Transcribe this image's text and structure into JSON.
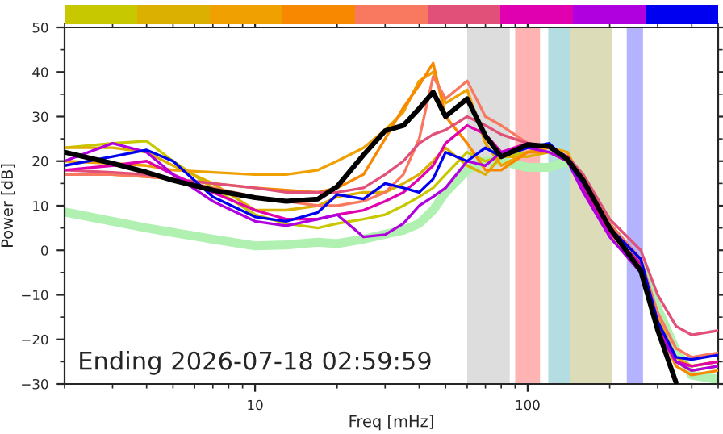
{
  "chart_data": {
    "type": "line",
    "xlabel": "Freq [mHz]",
    "ylabel": "Power [dB]",
    "log": "x",
    "xlim": [
      2,
      500
    ],
    "xticks": [
      10,
      100
    ],
    "ylim": [
      -30,
      50
    ],
    "yticks": [
      -30,
      -20,
      -10,
      0,
      10,
      20,
      30,
      40,
      50
    ],
    "grid": false,
    "legend": false,
    "annotations": [
      "Ending 2026-07-18 02:59:59"
    ],
    "bands": [
      {
        "axis": "x",
        "from": 60,
        "to": 86,
        "color": "#dddddd"
      },
      {
        "axis": "x",
        "from": 90,
        "to": 111,
        "color": "#ffb3b3"
      },
      {
        "axis": "x",
        "from": 119,
        "to": 143,
        "color": "#b3dde0"
      },
      {
        "axis": "x",
        "from": 143,
        "to": 204,
        "color": "#dcdcb8"
      },
      {
        "axis": "x",
        "from": 231,
        "to": 265,
        "color": "#b3b3ff"
      }
    ],
    "x": [
      2,
      3,
      4,
      5,
      7,
      10,
      13,
      17,
      20,
      25,
      30,
      35,
      40,
      45,
      50,
      60,
      70,
      80,
      100,
      120,
      140,
      160,
      200,
      260,
      300,
      350,
      400,
      500
    ],
    "series": [
      {
        "color": "#b0f0b0",
        "values": [
          8.6,
          6.5,
          5,
          4,
          2.5,
          1,
          1.2,
          1.8,
          1.5,
          2.5,
          3.6,
          4.5,
          6,
          9,
          13,
          18,
          20,
          20,
          18.6,
          18.6,
          20,
          15.7,
          5,
          -3.5,
          -13,
          -22.5,
          -28,
          -29
        ]
      },
      {
        "color": "#c8c800",
        "values": [
          23,
          24,
          24.5,
          20,
          14,
          8,
          6,
          5,
          6,
          7,
          8,
          10,
          12,
          14,
          17,
          22,
          20,
          21,
          22,
          23,
          20,
          14,
          5,
          -3,
          -16,
          -25,
          -27,
          -26
        ]
      },
      {
        "color": "#dcb000",
        "values": [
          23,
          23,
          22,
          19,
          15,
          9,
          9,
          10,
          12,
          13,
          13,
          15,
          17,
          20,
          23,
          19,
          17,
          21,
          21,
          22,
          20,
          15,
          5,
          -3,
          -17,
          -25,
          -26,
          -25
        ]
      },
      {
        "color": "#f0a000",
        "values": [
          20,
          19.5,
          19,
          18,
          17.5,
          17,
          17,
          18,
          20,
          23,
          27,
          31,
          38,
          40,
          33,
          36,
          24,
          19,
          22,
          23,
          22,
          15,
          6,
          -2,
          -15,
          -24,
          -26,
          -25
        ]
      },
      {
        "color": "#f88800",
        "values": [
          17,
          17,
          16.5,
          16,
          15,
          14,
          13.5,
          13,
          14,
          17,
          25,
          32,
          37,
          42,
          30,
          24,
          18,
          18,
          22,
          22,
          20,
          14,
          4,
          -4,
          -17,
          -26,
          -28,
          -27
        ]
      },
      {
        "color": "#f87860",
        "values": [
          17,
          17,
          16.5,
          16,
          14,
          12,
          11,
          10,
          10,
          11,
          13,
          17,
          25,
          39,
          34,
          38,
          30,
          28,
          24,
          23,
          21,
          16,
          6,
          -2,
          -14,
          -22,
          -24,
          -23
        ]
      },
      {
        "color": "#e05078",
        "values": [
          18,
          17.5,
          17,
          16,
          15,
          14,
          13,
          13,
          13,
          14,
          17,
          20,
          24,
          26,
          27,
          30,
          28,
          26,
          24,
          23,
          21,
          17,
          7,
          0,
          -10,
          -17,
          -19,
          -18
        ]
      },
      {
        "color": "#e000b0",
        "values": [
          18,
          19,
          20,
          17,
          13,
          9,
          7,
          7,
          8,
          9,
          11,
          13,
          16,
          19,
          24,
          28,
          26,
          22,
          24,
          23,
          21,
          14,
          4,
          -3,
          -16,
          -25,
          -26,
          -25
        ]
      },
      {
        "color": "#b000e0",
        "values": [
          20,
          24,
          22,
          17,
          11,
          6.5,
          5.5,
          7,
          8,
          3,
          3.5,
          6,
          10,
          12,
          14,
          20,
          19,
          22,
          23,
          22,
          20,
          13,
          3,
          -5,
          -18,
          -25,
          -27,
          -26
        ]
      },
      {
        "color": "#0000f0",
        "values": [
          19,
          21,
          22.5,
          20,
          12,
          7.5,
          6.5,
          8.5,
          12.5,
          11.5,
          15,
          14,
          13,
          16,
          22,
          20,
          23,
          21,
          23,
          24,
          20,
          15,
          5,
          -2,
          -16,
          -24,
          -24.5,
          -23.5
        ]
      },
      {
        "color": "#000000",
        "values": [
          22,
          19.5,
          17.5,
          15.7,
          13.5,
          11.8,
          11,
          11.5,
          14.3,
          21.4,
          26.8,
          28,
          31.8,
          35.5,
          30,
          34,
          25.7,
          21,
          23.7,
          23.3,
          20.4,
          15.7,
          5,
          -4.6,
          -17.9,
          -29.6,
          null,
          null
        ]
      }
    ]
  }
}
